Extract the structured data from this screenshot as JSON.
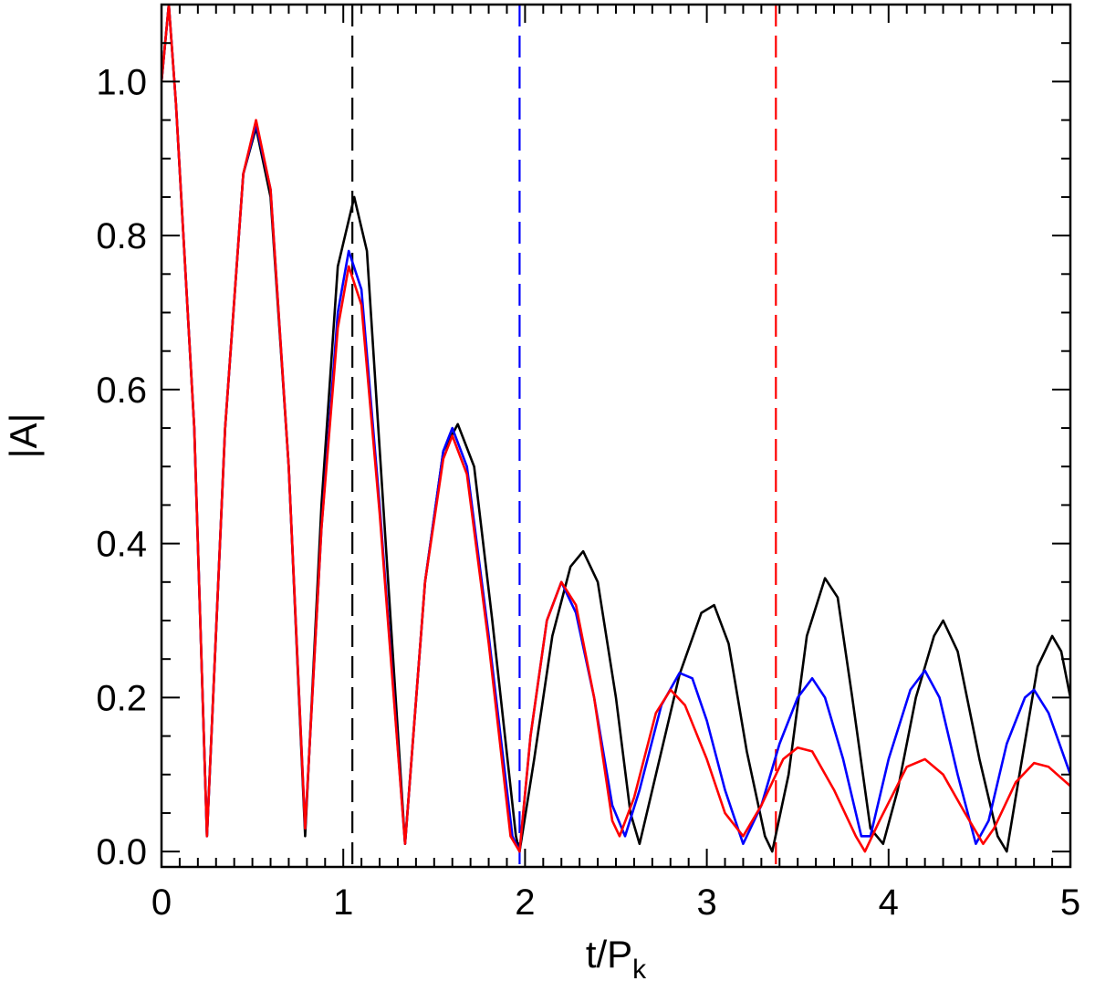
{
  "chart_data": {
    "type": "line",
    "title": "",
    "xlabel": "t/P",
    "xlabel_sub": "k",
    "ylabel": "|A|",
    "xlim": [
      0,
      5
    ],
    "ylim": [
      -0.02,
      1.1
    ],
    "x_ticks": [
      0,
      1,
      2,
      3,
      4,
      5
    ],
    "x_tick_labels": [
      "0",
      "1",
      "2",
      "3",
      "4",
      "5"
    ],
    "y_ticks": [
      0.0,
      0.2,
      0.4,
      0.6,
      0.8,
      1.0
    ],
    "y_tick_labels": [
      "0.0",
      "0.2",
      "0.4",
      "0.6",
      "0.8",
      "1.0"
    ],
    "x_minor_step": 0.1,
    "y_minor_step": 0.05,
    "grid": false,
    "legend": "none",
    "vlines": [
      {
        "x": 1.05,
        "color": "#000000",
        "style": "dashed"
      },
      {
        "x": 1.97,
        "color": "#0000ff",
        "style": "dashed"
      },
      {
        "x": 3.38,
        "color": "#ff0000",
        "style": "dashed"
      }
    ],
    "series": [
      {
        "color": "#000000",
        "points": [
          [
            0,
            1.0
          ],
          [
            0.04,
            1.1
          ],
          [
            0.08,
            0.97
          ],
          [
            0.18,
            0.55
          ],
          [
            0.25,
            0.02
          ],
          [
            0.35,
            0.55
          ],
          [
            0.45,
            0.88
          ],
          [
            0.52,
            0.94
          ],
          [
            0.6,
            0.85
          ],
          [
            0.7,
            0.5
          ],
          [
            0.79,
            0.02
          ],
          [
            0.88,
            0.45
          ],
          [
            0.97,
            0.76
          ],
          [
            1.06,
            0.85
          ],
          [
            1.13,
            0.78
          ],
          [
            1.22,
            0.45
          ],
          [
            1.34,
            0.01
          ],
          [
            1.45,
            0.35
          ],
          [
            1.55,
            0.52
          ],
          [
            1.63,
            0.555
          ],
          [
            1.72,
            0.5
          ],
          [
            1.82,
            0.3
          ],
          [
            1.95,
            0.02
          ],
          [
            1.97,
            0.0
          ],
          [
            2.05,
            0.12
          ],
          [
            2.15,
            0.28
          ],
          [
            2.25,
            0.37
          ],
          [
            2.32,
            0.39
          ],
          [
            2.4,
            0.35
          ],
          [
            2.5,
            0.2
          ],
          [
            2.58,
            0.05
          ],
          [
            2.63,
            0.01
          ],
          [
            2.72,
            0.1
          ],
          [
            2.85,
            0.23
          ],
          [
            2.97,
            0.31
          ],
          [
            3.04,
            0.32
          ],
          [
            3.12,
            0.27
          ],
          [
            3.22,
            0.13
          ],
          [
            3.32,
            0.02
          ],
          [
            3.36,
            0.0
          ],
          [
            3.45,
            0.1
          ],
          [
            3.55,
            0.28
          ],
          [
            3.65,
            0.355
          ],
          [
            3.72,
            0.33
          ],
          [
            3.8,
            0.2
          ],
          [
            3.9,
            0.03
          ],
          [
            3.97,
            0.01
          ],
          [
            4.05,
            0.08
          ],
          [
            4.15,
            0.2
          ],
          [
            4.25,
            0.28
          ],
          [
            4.3,
            0.3
          ],
          [
            4.38,
            0.26
          ],
          [
            4.5,
            0.12
          ],
          [
            4.6,
            0.02
          ],
          [
            4.65,
            0.0
          ],
          [
            4.72,
            0.1
          ],
          [
            4.82,
            0.24
          ],
          [
            4.9,
            0.28
          ],
          [
            4.95,
            0.26
          ],
          [
            5.0,
            0.2
          ]
        ]
      },
      {
        "color": "#0000ff",
        "points": [
          [
            0,
            1.0
          ],
          [
            0.04,
            1.1
          ],
          [
            0.08,
            0.97
          ],
          [
            0.18,
            0.55
          ],
          [
            0.25,
            0.02
          ],
          [
            0.35,
            0.55
          ],
          [
            0.45,
            0.88
          ],
          [
            0.52,
            0.945
          ],
          [
            0.6,
            0.86
          ],
          [
            0.7,
            0.5
          ],
          [
            0.79,
            0.03
          ],
          [
            0.88,
            0.42
          ],
          [
            0.97,
            0.7
          ],
          [
            1.03,
            0.78
          ],
          [
            1.1,
            0.73
          ],
          [
            1.2,
            0.45
          ],
          [
            1.34,
            0.01
          ],
          [
            1.45,
            0.35
          ],
          [
            1.55,
            0.52
          ],
          [
            1.6,
            0.55
          ],
          [
            1.68,
            0.5
          ],
          [
            1.8,
            0.28
          ],
          [
            1.93,
            0.02
          ],
          [
            1.97,
            0.0
          ],
          [
            2.03,
            0.15
          ],
          [
            2.12,
            0.3
          ],
          [
            2.2,
            0.35
          ],
          [
            2.28,
            0.31
          ],
          [
            2.38,
            0.2
          ],
          [
            2.48,
            0.06
          ],
          [
            2.55,
            0.02
          ],
          [
            2.63,
            0.08
          ],
          [
            2.75,
            0.19
          ],
          [
            2.85,
            0.232
          ],
          [
            2.92,
            0.225
          ],
          [
            3.0,
            0.17
          ],
          [
            3.1,
            0.08
          ],
          [
            3.2,
            0.01
          ],
          [
            3.3,
            0.06
          ],
          [
            3.4,
            0.14
          ],
          [
            3.5,
            0.2
          ],
          [
            3.58,
            0.225
          ],
          [
            3.65,
            0.2
          ],
          [
            3.75,
            0.12
          ],
          [
            3.85,
            0.02
          ],
          [
            3.9,
            0.02
          ],
          [
            4.0,
            0.12
          ],
          [
            4.12,
            0.21
          ],
          [
            4.2,
            0.235
          ],
          [
            4.28,
            0.2
          ],
          [
            4.38,
            0.1
          ],
          [
            4.48,
            0.01
          ],
          [
            4.55,
            0.04
          ],
          [
            4.65,
            0.14
          ],
          [
            4.75,
            0.2
          ],
          [
            4.8,
            0.21
          ],
          [
            4.88,
            0.18
          ],
          [
            5.0,
            0.1
          ]
        ]
      },
      {
        "color": "#ff0000",
        "points": [
          [
            0,
            1.0
          ],
          [
            0.04,
            1.1
          ],
          [
            0.08,
            0.97
          ],
          [
            0.18,
            0.55
          ],
          [
            0.25,
            0.02
          ],
          [
            0.35,
            0.55
          ],
          [
            0.45,
            0.88
          ],
          [
            0.52,
            0.95
          ],
          [
            0.6,
            0.86
          ],
          [
            0.7,
            0.5
          ],
          [
            0.79,
            0.03
          ],
          [
            0.88,
            0.42
          ],
          [
            0.97,
            0.68
          ],
          [
            1.03,
            0.76
          ],
          [
            1.1,
            0.71
          ],
          [
            1.2,
            0.44
          ],
          [
            1.34,
            0.01
          ],
          [
            1.45,
            0.35
          ],
          [
            1.55,
            0.51
          ],
          [
            1.6,
            0.54
          ],
          [
            1.68,
            0.49
          ],
          [
            1.8,
            0.27
          ],
          [
            1.92,
            0.02
          ],
          [
            1.97,
            0.0
          ],
          [
            2.03,
            0.15
          ],
          [
            2.12,
            0.3
          ],
          [
            2.2,
            0.35
          ],
          [
            2.28,
            0.32
          ],
          [
            2.38,
            0.2
          ],
          [
            2.48,
            0.04
          ],
          [
            2.52,
            0.02
          ],
          [
            2.6,
            0.07
          ],
          [
            2.72,
            0.18
          ],
          [
            2.8,
            0.21
          ],
          [
            2.88,
            0.19
          ],
          [
            3.0,
            0.12
          ],
          [
            3.1,
            0.05
          ],
          [
            3.2,
            0.02
          ],
          [
            3.3,
            0.06
          ],
          [
            3.42,
            0.12
          ],
          [
            3.5,
            0.135
          ],
          [
            3.58,
            0.13
          ],
          [
            3.7,
            0.08
          ],
          [
            3.82,
            0.02
          ],
          [
            3.87,
            0.0
          ],
          [
            3.95,
            0.04
          ],
          [
            4.1,
            0.11
          ],
          [
            4.2,
            0.12
          ],
          [
            4.3,
            0.1
          ],
          [
            4.42,
            0.05
          ],
          [
            4.52,
            0.01
          ],
          [
            4.58,
            0.03
          ],
          [
            4.7,
            0.09
          ],
          [
            4.8,
            0.115
          ],
          [
            4.88,
            0.11
          ],
          [
            5.0,
            0.085
          ]
        ]
      }
    ]
  }
}
